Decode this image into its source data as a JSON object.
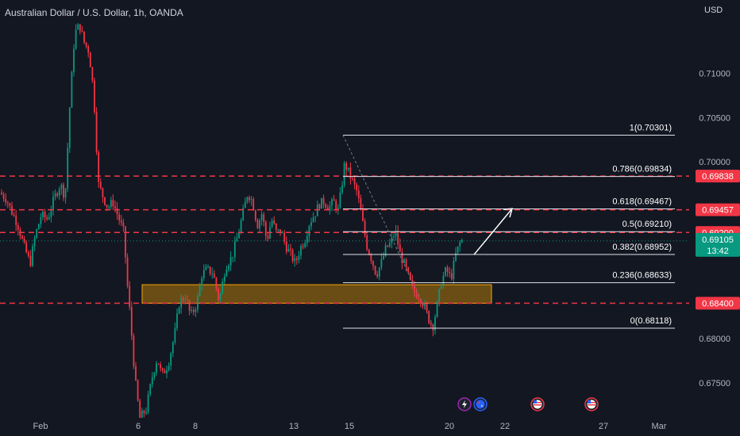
{
  "header": {
    "title": "Australian Dollar / U.S. Dollar, 1h, OANDA",
    "currency": "USD"
  },
  "chart_data": {
    "type": "candlestick",
    "symbol": "AUDUSD",
    "timeframe": "1h",
    "ylim": [
      0.6715,
      0.7165
    ],
    "y_ticks": [
      {
        "value": 0.71,
        "label": "0.71000"
      },
      {
        "value": 0.705,
        "label": "0.70500"
      },
      {
        "value": 0.7,
        "label": "0.70000"
      },
      {
        "value": 0.68,
        "label": "0.68000"
      },
      {
        "value": 0.675,
        "label": "0.67500"
      }
    ],
    "x_ticks": [
      "Feb",
      "6",
      "8",
      "13",
      "15",
      "20",
      "22",
      "27",
      "Mar"
    ],
    "price_path": [
      {
        "x": 0,
        "y": 0.6965
      },
      {
        "x": 8,
        "y": 0.6958
      },
      {
        "x": 14,
        "y": 0.6945
      },
      {
        "x": 22,
        "y": 0.693
      },
      {
        "x": 30,
        "y": 0.6905
      },
      {
        "x": 38,
        "y": 0.6885
      },
      {
        "x": 44,
        "y": 0.6915
      },
      {
        "x": 52,
        "y": 0.694
      },
      {
        "x": 60,
        "y": 0.6935
      },
      {
        "x": 68,
        "y": 0.6958
      },
      {
        "x": 76,
        "y": 0.6975
      },
      {
        "x": 82,
        "y": 0.696
      },
      {
        "x": 88,
        "y": 0.7065
      },
      {
        "x": 94,
        "y": 0.7145
      },
      {
        "x": 100,
        "y": 0.7155
      },
      {
        "x": 106,
        "y": 0.7135
      },
      {
        "x": 112,
        "y": 0.7125
      },
      {
        "x": 118,
        "y": 0.7078
      },
      {
        "x": 124,
        "y": 0.6975
      },
      {
        "x": 130,
        "y": 0.696
      },
      {
        "x": 136,
        "y": 0.6948
      },
      {
        "x": 142,
        "y": 0.6955
      },
      {
        "x": 150,
        "y": 0.6935
      },
      {
        "x": 156,
        "y": 0.692
      },
      {
        "x": 160,
        "y": 0.6865
      },
      {
        "x": 164,
        "y": 0.6825
      },
      {
        "x": 170,
        "y": 0.6755
      },
      {
        "x": 176,
        "y": 0.671
      },
      {
        "x": 184,
        "y": 0.672
      },
      {
        "x": 192,
        "y": 0.6758
      },
      {
        "x": 198,
        "y": 0.6778
      },
      {
        "x": 204,
        "y": 0.6758
      },
      {
        "x": 212,
        "y": 0.6772
      },
      {
        "x": 220,
        "y": 0.6805
      },
      {
        "x": 226,
        "y": 0.6842
      },
      {
        "x": 234,
        "y": 0.6848
      },
      {
        "x": 240,
        "y": 0.6825
      },
      {
        "x": 248,
        "y": 0.684
      },
      {
        "x": 254,
        "y": 0.6872
      },
      {
        "x": 260,
        "y": 0.6878
      },
      {
        "x": 268,
        "y": 0.6875
      },
      {
        "x": 276,
        "y": 0.6842
      },
      {
        "x": 284,
        "y": 0.6882
      },
      {
        "x": 292,
        "y": 0.6892
      },
      {
        "x": 300,
        "y": 0.6918
      },
      {
        "x": 306,
        "y": 0.6942
      },
      {
        "x": 312,
        "y": 0.6965
      },
      {
        "x": 318,
        "y": 0.6955
      },
      {
        "x": 324,
        "y": 0.6928
      },
      {
        "x": 330,
        "y": 0.6942
      },
      {
        "x": 336,
        "y": 0.691
      },
      {
        "x": 342,
        "y": 0.6935
      },
      {
        "x": 348,
        "y": 0.692
      },
      {
        "x": 354,
        "y": 0.6922
      },
      {
        "x": 360,
        "y": 0.6905
      },
      {
        "x": 366,
        "y": 0.6895
      },
      {
        "x": 372,
        "y": 0.6885
      },
      {
        "x": 378,
        "y": 0.6902
      },
      {
        "x": 384,
        "y": 0.6912
      },
      {
        "x": 390,
        "y": 0.6932
      },
      {
        "x": 396,
        "y": 0.694
      },
      {
        "x": 402,
        "y": 0.6952
      },
      {
        "x": 408,
        "y": 0.6955
      },
      {
        "x": 414,
        "y": 0.6948
      },
      {
        "x": 420,
        "y": 0.6955
      },
      {
        "x": 426,
        "y": 0.6945
      },
      {
        "x": 430,
        "y": 0.697
      },
      {
        "x": 434,
        "y": 0.6998
      },
      {
        "x": 438,
        "y": 0.699
      },
      {
        "x": 444,
        "y": 0.6978
      },
      {
        "x": 450,
        "y": 0.6965
      },
      {
        "x": 456,
        "y": 0.6935
      },
      {
        "x": 462,
        "y": 0.6905
      },
      {
        "x": 468,
        "y": 0.689
      },
      {
        "x": 474,
        "y": 0.6872
      },
      {
        "x": 480,
        "y": 0.6885
      },
      {
        "x": 486,
        "y": 0.6902
      },
      {
        "x": 492,
        "y": 0.6908
      },
      {
        "x": 498,
        "y": 0.6922
      },
      {
        "x": 504,
        "y": 0.6895
      },
      {
        "x": 510,
        "y": 0.6882
      },
      {
        "x": 516,
        "y": 0.6865
      },
      {
        "x": 522,
        "y": 0.6852
      },
      {
        "x": 528,
        "y": 0.6848
      },
      {
        "x": 534,
        "y": 0.6838
      },
      {
        "x": 540,
        "y": 0.6822
      },
      {
        "x": 545,
        "y": 0.6813
      },
      {
        "x": 550,
        "y": 0.6835
      },
      {
        "x": 556,
        "y": 0.6865
      },
      {
        "x": 562,
        "y": 0.6878
      },
      {
        "x": 568,
        "y": 0.6868
      },
      {
        "x": 574,
        "y": 0.6895
      },
      {
        "x": 580,
        "y": 0.691
      },
      {
        "x": 584,
        "y": 0.6911
      }
    ],
    "horizontal_levels": [
      {
        "value": 0.69838,
        "label": "0.69838",
        "color": "#f23645"
      },
      {
        "value": 0.69457,
        "label": "0.69457",
        "color": "#f23645"
      },
      {
        "value": 0.692,
        "label": "0.69200",
        "color": "#f23645"
      },
      {
        "value": 0.684,
        "label": "0.68400",
        "color": "#f23645"
      }
    ],
    "current_price": {
      "value": 0.69105,
      "label": "0.69105",
      "countdown": "13:42",
      "color": "#089981"
    },
    "fibonacci": {
      "high": 0.70301,
      "low": 0.68118,
      "levels": [
        {
          "ratio": "1",
          "value": 0.70301,
          "label": "1(0.70301)"
        },
        {
          "ratio": "0.786",
          "value": 0.69834,
          "label": "0.786(0.69834)"
        },
        {
          "ratio": "0.618",
          "value": 0.69467,
          "label": "0.618(0.69467)"
        },
        {
          "ratio": "0.5",
          "value": 0.6921,
          "label": "0.5(0.69210)"
        },
        {
          "ratio": "0.382",
          "value": 0.68952,
          "label": "0.382(0.68952)"
        },
        {
          "ratio": "0.236",
          "value": 0.68633,
          "label": "0.236(0.68633)"
        },
        {
          "ratio": "0",
          "value": 0.68118,
          "label": "0(0.68118)"
        }
      ]
    },
    "support_zone": {
      "low": 0.684,
      "high": 0.6861,
      "color": "#f7a600"
    },
    "arrow": {
      "from": 0.6895,
      "to": 0.6947,
      "direction": "up"
    },
    "events": [
      {
        "icon": "lightning-icon",
        "kind": "event",
        "color": "#9c27b0"
      },
      {
        "icon": "australia-flag-icon",
        "kind": "country",
        "color": "#2962ff"
      },
      {
        "icon": "usa-flag-icon",
        "kind": "country",
        "color": "#f23645"
      },
      {
        "icon": "usa-flag-icon",
        "kind": "country",
        "color": "#f23645"
      }
    ],
    "colors": {
      "background": "#131722",
      "up": "#089981",
      "down": "#f23645",
      "text": "#d1d4dc",
      "axis_text": "#b2b5be"
    },
    "grid": false,
    "legend": "none"
  }
}
